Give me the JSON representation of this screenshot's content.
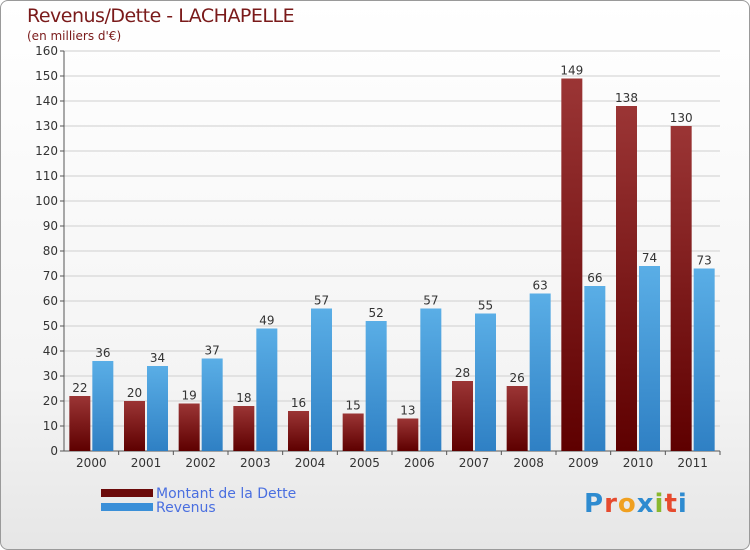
{
  "header": {
    "title": "Revenus/Dette - LACHAPELLE",
    "subtitle": "(en milliers d'€)"
  },
  "legend": {
    "items": [
      {
        "label": "Montant de la Dette",
        "color": "#6b0a0a"
      },
      {
        "label": "Revenus",
        "color": "#3a8fd8"
      }
    ]
  },
  "logo": {
    "text": "Proxiti",
    "letter_colors": [
      "#2e8bd0",
      "#e64a2e",
      "#f0a020",
      "#2e8bd0",
      "#8ab82e",
      "#e64a2e",
      "#2e8bd0"
    ]
  },
  "colors": {
    "dette_top": "#9b3535",
    "dette_bottom": "#5e0000",
    "revenus_top": "#5aaee6",
    "revenus_bottom": "#2f80c4",
    "grid": "#cfcfcf",
    "text": "#333333"
  },
  "chart_data": {
    "type": "bar",
    "title": "Revenus/Dette - LACHAPELLE",
    "subtitle": "(en milliers d'€)",
    "xlabel": "",
    "ylabel": "",
    "categories": [
      "2000",
      "2001",
      "2002",
      "2003",
      "2004",
      "2005",
      "2006",
      "2007",
      "2008",
      "2009",
      "2010",
      "2011"
    ],
    "series": [
      {
        "name": "Montant de la Dette",
        "values": [
          22,
          20,
          19,
          18,
          16,
          15,
          13,
          28,
          26,
          149,
          138,
          130
        ]
      },
      {
        "name": "Revenus",
        "values": [
          36,
          34,
          37,
          49,
          57,
          52,
          57,
          55,
          63,
          66,
          74,
          73
        ]
      }
    ],
    "ylim": [
      0,
      160
    ],
    "yticks": [
      0,
      10,
      20,
      30,
      40,
      50,
      60,
      70,
      80,
      90,
      100,
      110,
      120,
      130,
      140,
      150,
      160
    ],
    "grid": true,
    "legend_position": "bottom-left"
  }
}
